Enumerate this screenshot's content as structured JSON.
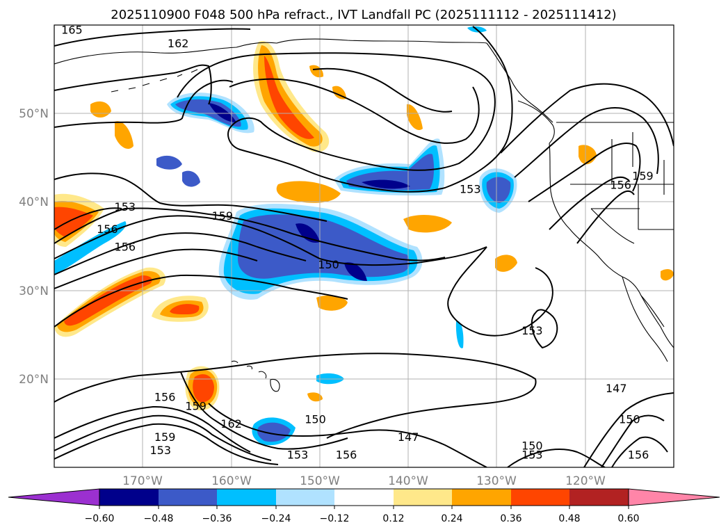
{
  "title": "2025110900 F048 500 hPa refract., IVT Landfall PC (2025111112 - 2025111412)",
  "map": {
    "lon_range": [
      -180,
      -110
    ],
    "lat_range": [
      10,
      60
    ],
    "lon_ticks": [
      "170°W",
      "160°W",
      "150°W",
      "140°W",
      "130°W",
      "120°W"
    ],
    "lat_ticks": [
      "50°N",
      "40°N",
      "30°N",
      "20°N"
    ],
    "gridlines": true
  },
  "contour_labels": [
    {
      "text": "165",
      "lon": -178,
      "lat": 59
    },
    {
      "text": "162",
      "lon": -166,
      "lat": 57.5
    },
    {
      "text": "159",
      "lon": -161,
      "lat": 38
    },
    {
      "text": "153",
      "lon": -172,
      "lat": 39
    },
    {
      "text": "156",
      "lon": -174,
      "lat": 36.5
    },
    {
      "text": "156",
      "lon": -172,
      "lat": 34.5
    },
    {
      "text": "150",
      "lon": -149,
      "lat": 32.5
    },
    {
      "text": "153",
      "lon": -133,
      "lat": 41
    },
    {
      "text": "156",
      "lon": -116,
      "lat": 41.5
    },
    {
      "text": "159",
      "lon": -113.5,
      "lat": 42.5
    },
    {
      "text": "153",
      "lon": -126,
      "lat": 25
    },
    {
      "text": "156",
      "lon": -167.5,
      "lat": 17.5
    },
    {
      "text": "159",
      "lon": -164,
      "lat": 16.5
    },
    {
      "text": "162",
      "lon": -160,
      "lat": 14.5
    },
    {
      "text": "159",
      "lon": -167.5,
      "lat": 13
    },
    {
      "text": "153",
      "lon": -168,
      "lat": 11.5
    },
    {
      "text": "150",
      "lon": -150.5,
      "lat": 15
    },
    {
      "text": "147",
      "lon": -140,
      "lat": 13
    },
    {
      "text": "153",
      "lon": -152.5,
      "lat": 11
    },
    {
      "text": "156",
      "lon": -147,
      "lat": 11
    },
    {
      "text": "150",
      "lon": -126,
      "lat": 12
    },
    {
      "text": "153",
      "lon": -126,
      "lat": 11
    },
    {
      "text": "147",
      "lon": -116.5,
      "lat": 18.5
    },
    {
      "text": "150",
      "lon": -115,
      "lat": 15
    },
    {
      "text": "156",
      "lon": -114,
      "lat": 11
    }
  ],
  "colorbar": {
    "ticks": [
      "−0.60",
      "−0.48",
      "−0.36",
      "−0.24",
      "−0.12",
      "0.12",
      "0.24",
      "0.36",
      "0.48",
      "0.60"
    ],
    "colors": [
      "#9b30d0",
      "#00008b",
      "#3c5ac8",
      "#00bfff",
      "#b0e2ff",
      "#ffffff",
      "#ffe88a",
      "#ffa500",
      "#ff4500",
      "#b22222",
      "#ff85a8"
    ]
  },
  "colors": {
    "negative_mid": "#3c5ac8",
    "negative_light": "#00bfff",
    "negative_pale": "#b0e2ff",
    "negative_dark": "#00008b",
    "positive_pale": "#ffe88a",
    "positive_mid": "#ffa500",
    "positive_strong": "#ff4500"
  }
}
